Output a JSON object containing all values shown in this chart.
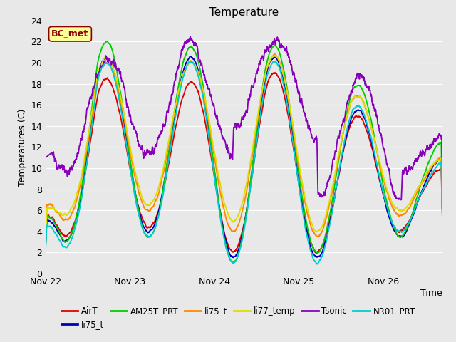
{
  "title": "Temperature",
  "xlabel": "Time",
  "ylabel": "Temperatures (C)",
  "ylim": [
    0,
    24
  ],
  "xlim_days": 4.7,
  "yticks": [
    0,
    2,
    4,
    6,
    8,
    10,
    12,
    14,
    16,
    18,
    20,
    22,
    24
  ],
  "xtick_labels": [
    "Nov 22",
    "Nov 23",
    "Nov 24",
    "Nov 25",
    "Nov 26"
  ],
  "xtick_positions": [
    0,
    1,
    2,
    3,
    4
  ],
  "annotation_text": "BC_met",
  "fig_bg": "#e8e8e8",
  "plot_bg": "#e8e8e8",
  "grid_color": "#ffffff",
  "series_colors": {
    "AirT": "#dd0000",
    "li75_t_b": "#0000bb",
    "AM25T_PRT": "#00cc00",
    "li75_t": "#ff8800",
    "li77_temp": "#dddd00",
    "Tsonic": "#8800bb",
    "NR01_PRT": "#00cccc"
  },
  "lw": 1.3
}
